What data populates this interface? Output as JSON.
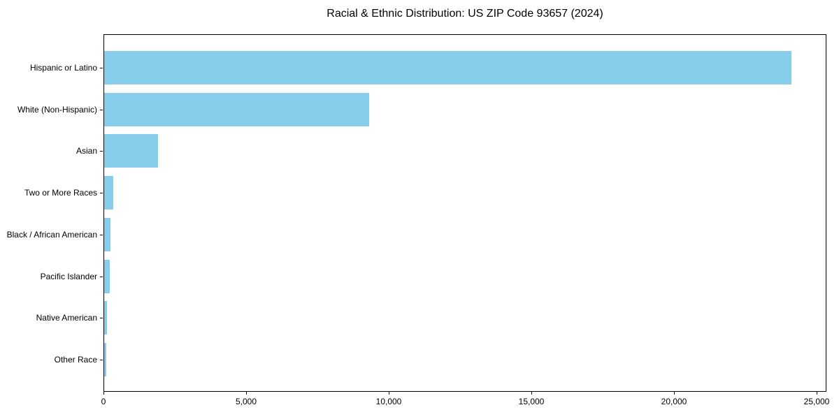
{
  "figure": {
    "background_color": "#ffffff",
    "text_color": "#000000",
    "plot_border_color": "#000000"
  },
  "chart_data": {
    "type": "bar",
    "orientation": "horizontal",
    "title": "Racial & Ethnic Distribution: US ZIP Code 93657 (2024)",
    "categories": [
      "Hispanic or Latino",
      "White (Non-Hispanic)",
      "Asian",
      "Two or More Races",
      "Black / African American",
      "Pacific Islander",
      "Native American",
      "Other Race"
    ],
    "values": [
      24100,
      9300,
      1890,
      310,
      220,
      200,
      100,
      75
    ],
    "bar_color": "#87CEEB",
    "xlabel": "",
    "ylabel": "",
    "xlim": [
      0,
      25350
    ],
    "xticks": [
      0,
      5000,
      10000,
      15000,
      20000,
      25000
    ],
    "xtick_labels": [
      "0",
      "5,000",
      "10,000",
      "15,000",
      "20,000",
      "25,000"
    ],
    "grid": false,
    "legend": null,
    "largest_category_on_top": true
  }
}
